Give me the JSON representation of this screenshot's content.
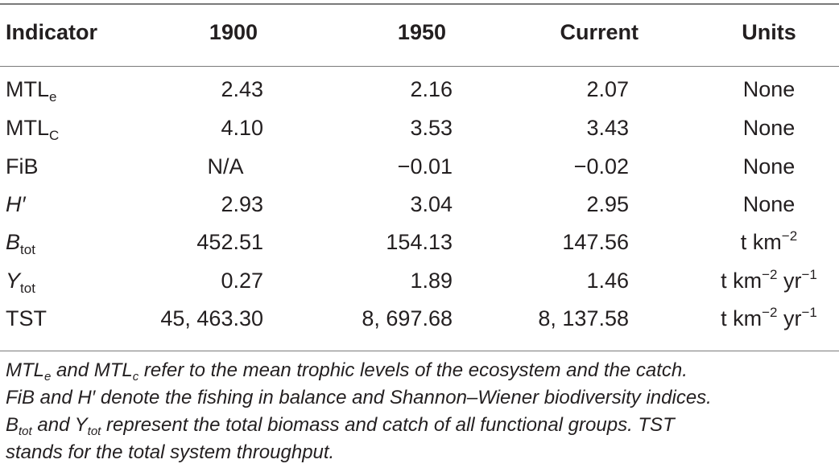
{
  "table": {
    "headers": [
      "Indicator",
      "1900",
      "1950",
      "Current",
      "Units"
    ],
    "rows": [
      {
        "label": "MTL",
        "label_sub": "e",
        "v1900": "2.43",
        "v1950": "2.16",
        "vcurrent": "2.07",
        "units": "None"
      },
      {
        "label": "MTL",
        "label_sub": "C",
        "v1900": "4.10",
        "v1950": "3.53",
        "vcurrent": "3.43",
        "units": "None"
      },
      {
        "label": "FiB",
        "v1900": "N/A",
        "v1950": "−0.01",
        "vcurrent": "−0.02",
        "units": "None"
      },
      {
        "label": "H′",
        "v1900": "2.93",
        "v1950": "3.04",
        "vcurrent": "2.95",
        "units": "None"
      },
      {
        "label": "B",
        "label_sub": "tot",
        "v1900": "452.51",
        "v1950": "154.13",
        "vcurrent": "147.56",
        "units": "t km",
        "units_sup": "−2"
      },
      {
        "label": "Y",
        "label_sub": "tot",
        "v1900": "0.27",
        "v1950": "1.89",
        "vcurrent": "1.46",
        "units": "t km",
        "units_sup": "−2",
        "units2": " yr",
        "units2_sup": "−1"
      },
      {
        "label": "TST",
        "v1900": "45, 463.30",
        "v1950": "8, 697.68",
        "vcurrent": "8, 137.58",
        "units": "t km",
        "units_sup": "−2",
        "units2": " yr",
        "units2_sup": "−1"
      }
    ]
  },
  "footnote": {
    "line1": {
      "a": "MTL",
      "a_sub": "e",
      "b": " and MTL",
      "b_sub": "c",
      "c": " refer to the mean trophic levels of the ecosystem and the catch."
    },
    "line2": {
      "a": "FiB and H′ denote the fishing in balance and Shannon–Wiener biodiversity indices."
    },
    "line3": {
      "a": "B",
      "a_sub": "tot",
      "b": " and Y",
      "b_sub": "tot",
      "c": " represent the total biomass and catch of all functional groups. TST"
    },
    "line4": {
      "a": "stands for the total system throughput."
    }
  }
}
